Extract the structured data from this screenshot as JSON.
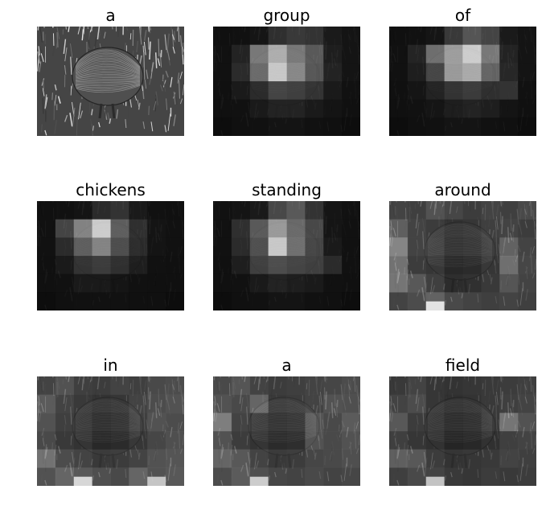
{
  "figure": {
    "words": [
      "a",
      "group",
      "of",
      "chickens",
      "standing",
      "around",
      "in",
      "a",
      "field"
    ]
  },
  "panels": [
    {
      "word": "a",
      "kind": "photo"
    },
    {
      "word": "group",
      "kind": "attention",
      "grid": [
        [
          0.05,
          0.06,
          0.08,
          0.2,
          0.25,
          0.22,
          0.1,
          0.07
        ],
        [
          0.06,
          0.14,
          0.55,
          0.8,
          0.55,
          0.4,
          0.12,
          0.07
        ],
        [
          0.06,
          0.18,
          0.48,
          0.92,
          0.62,
          0.38,
          0.14,
          0.07
        ],
        [
          0.05,
          0.1,
          0.18,
          0.3,
          0.28,
          0.22,
          0.1,
          0.06
        ],
        [
          0.05,
          0.06,
          0.1,
          0.14,
          0.14,
          0.1,
          0.07,
          0.05
        ],
        [
          0.04,
          0.05,
          0.06,
          0.07,
          0.07,
          0.06,
          0.05,
          0.04
        ]
      ]
    },
    {
      "word": "of",
      "kind": "attention",
      "grid": [
        [
          0.05,
          0.06,
          0.08,
          0.25,
          0.38,
          0.3,
          0.1,
          0.07
        ],
        [
          0.06,
          0.15,
          0.5,
          0.72,
          0.95,
          0.55,
          0.14,
          0.07
        ],
        [
          0.06,
          0.12,
          0.3,
          0.7,
          0.78,
          0.45,
          0.16,
          0.07
        ],
        [
          0.05,
          0.08,
          0.14,
          0.22,
          0.26,
          0.2,
          0.22,
          0.06
        ],
        [
          0.05,
          0.06,
          0.08,
          0.12,
          0.14,
          0.12,
          0.07,
          0.05
        ],
        [
          0.04,
          0.05,
          0.06,
          0.07,
          0.07,
          0.06,
          0.05,
          0.04
        ]
      ]
    },
    {
      "word": "chickens",
      "kind": "attention",
      "grid": [
        [
          0.05,
          0.06,
          0.07,
          0.18,
          0.22,
          0.1,
          0.06,
          0.05
        ],
        [
          0.06,
          0.3,
          0.6,
          0.95,
          0.42,
          0.2,
          0.07,
          0.06
        ],
        [
          0.06,
          0.18,
          0.42,
          0.6,
          0.34,
          0.18,
          0.07,
          0.06
        ],
        [
          0.05,
          0.1,
          0.22,
          0.26,
          0.2,
          0.12,
          0.06,
          0.05
        ],
        [
          0.05,
          0.06,
          0.1,
          0.1,
          0.08,
          0.06,
          0.05,
          0.05
        ],
        [
          0.04,
          0.05,
          0.06,
          0.06,
          0.06,
          0.05,
          0.05,
          0.04
        ]
      ]
    },
    {
      "word": "standing",
      "kind": "attention",
      "grid": [
        [
          0.06,
          0.07,
          0.1,
          0.32,
          0.4,
          0.22,
          0.08,
          0.06
        ],
        [
          0.06,
          0.2,
          0.4,
          0.7,
          0.48,
          0.32,
          0.08,
          0.06
        ],
        [
          0.06,
          0.18,
          0.35,
          0.92,
          0.5,
          0.3,
          0.1,
          0.06
        ],
        [
          0.05,
          0.12,
          0.28,
          0.34,
          0.3,
          0.28,
          0.18,
          0.06
        ],
        [
          0.05,
          0.06,
          0.1,
          0.14,
          0.12,
          0.1,
          0.06,
          0.05
        ],
        [
          0.04,
          0.05,
          0.06,
          0.07,
          0.07,
          0.06,
          0.05,
          0.04
        ]
      ]
    },
    {
      "word": "around",
      "kind": "texture",
      "grid": [
        [
          0.3,
          0.28,
          0.4,
          0.32,
          0.26,
          0.3,
          0.28,
          0.34
        ],
        [
          0.48,
          0.3,
          0.26,
          0.2,
          0.22,
          0.28,
          0.3,
          0.26
        ],
        [
          0.72,
          0.3,
          0.28,
          0.18,
          0.2,
          0.26,
          0.5,
          0.3
        ],
        [
          0.6,
          0.26,
          0.22,
          0.12,
          0.14,
          0.22,
          0.58,
          0.32
        ],
        [
          0.62,
          0.44,
          0.28,
          0.16,
          0.18,
          0.24,
          0.42,
          0.3
        ],
        [
          0.3,
          0.36,
          0.5,
          0.34,
          0.3,
          0.28,
          0.3,
          0.28
        ]
      ],
      "hot": [
        [
          5,
          2,
          0.95
        ]
      ]
    },
    {
      "word": "in",
      "kind": "texture",
      "grid": [
        [
          0.3,
          0.4,
          0.28,
          0.26,
          0.3,
          0.28,
          0.34,
          0.36
        ],
        [
          0.46,
          0.3,
          0.24,
          0.2,
          0.22,
          0.3,
          0.36,
          0.4
        ],
        [
          0.4,
          0.28,
          0.22,
          0.16,
          0.18,
          0.28,
          0.4,
          0.36
        ],
        [
          0.34,
          0.24,
          0.2,
          0.12,
          0.14,
          0.22,
          0.32,
          0.38
        ],
        [
          0.6,
          0.36,
          0.3,
          0.24,
          0.26,
          0.3,
          0.4,
          0.42
        ],
        [
          0.4,
          0.52,
          0.44,
          0.38,
          0.34,
          0.52,
          0.4,
          0.44
        ]
      ],
      "hot": [
        [
          5,
          2,
          0.9
        ],
        [
          5,
          6,
          0.82
        ]
      ]
    },
    {
      "word": "a",
      "kind": "texture",
      "grid": [
        [
          0.34,
          0.42,
          0.3,
          0.26,
          0.28,
          0.3,
          0.32,
          0.36
        ],
        [
          0.4,
          0.34,
          0.52,
          0.24,
          0.26,
          0.3,
          0.4,
          0.38
        ],
        [
          0.68,
          0.3,
          0.24,
          0.18,
          0.2,
          0.42,
          0.34,
          0.46
        ],
        [
          0.4,
          0.26,
          0.2,
          0.14,
          0.16,
          0.4,
          0.34,
          0.4
        ],
        [
          0.52,
          0.44,
          0.3,
          0.24,
          0.26,
          0.32,
          0.34,
          0.38
        ],
        [
          0.36,
          0.46,
          0.38,
          0.32,
          0.3,
          0.34,
          0.3,
          0.32
        ]
      ],
      "hot": [
        [
          5,
          2,
          0.85
        ]
      ]
    },
    {
      "word": "field",
      "kind": "texture",
      "grid": [
        [
          0.24,
          0.3,
          0.22,
          0.2,
          0.22,
          0.24,
          0.26,
          0.28
        ],
        [
          0.3,
          0.36,
          0.22,
          0.18,
          0.2,
          0.24,
          0.28,
          0.3
        ],
        [
          0.44,
          0.26,
          0.2,
          0.14,
          0.16,
          0.24,
          0.62,
          0.4
        ],
        [
          0.28,
          0.22,
          0.18,
          0.1,
          0.12,
          0.18,
          0.28,
          0.3
        ],
        [
          0.48,
          0.44,
          0.26,
          0.2,
          0.22,
          0.24,
          0.3,
          0.28
        ],
        [
          0.28,
          0.34,
          0.3,
          0.24,
          0.22,
          0.26,
          0.24,
          0.26
        ]
      ],
      "hot": [
        [
          5,
          2,
          0.82
        ]
      ]
    }
  ]
}
